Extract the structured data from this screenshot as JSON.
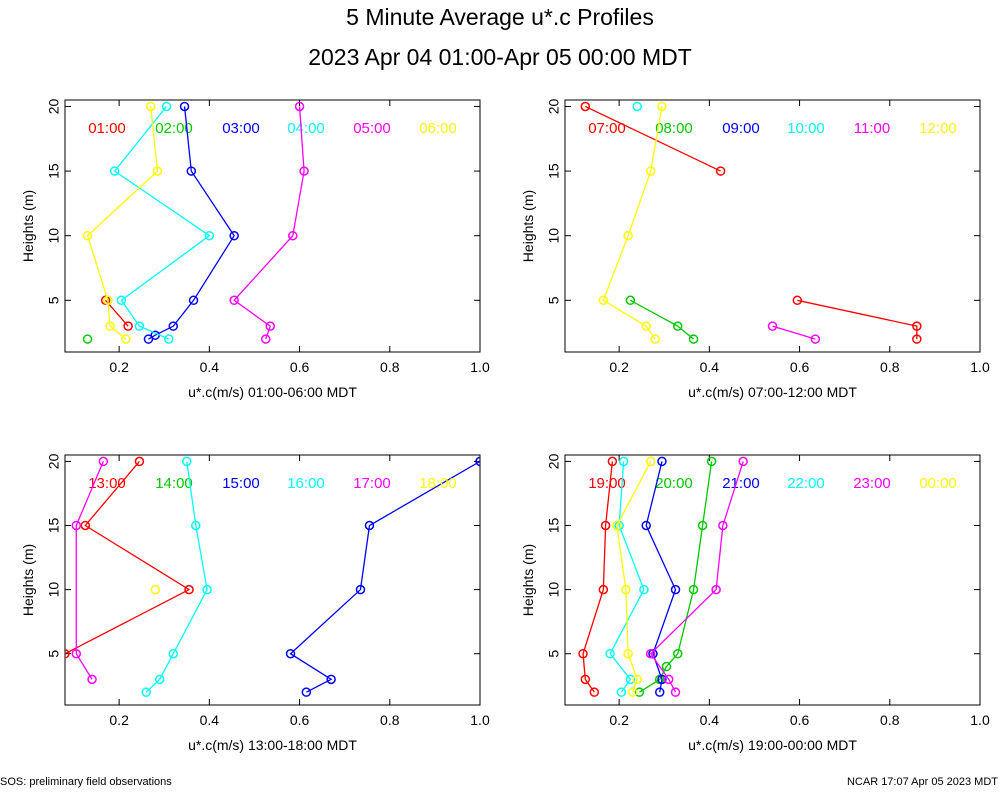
{
  "title": "5 Minute Average u*.c Profiles",
  "subtitle": "2023 Apr 04 01:00-Apr 05 00:00 MDT",
  "footer_left": "SOS: preliminary field observations",
  "footer_right": "NCAR 17:07 Apr 05 2023 MDT",
  "colors": [
    "#ff0000",
    "#00c800",
    "#0000ff",
    "#00ffff",
    "#ff00ff",
    "#ffff00"
  ],
  "chart_data": [
    {
      "type": "line",
      "xlabel": "u*.c(m/s) 01:00-06:00 MDT",
      "ylabel": "Heights (m)",
      "xlim": [
        0.08,
        1.0
      ],
      "ylim": [
        1.0,
        20.5
      ],
      "xticks": [
        0.2,
        0.4,
        0.6,
        0.8,
        1.0
      ],
      "xtick_labels": [
        "0.2",
        "0.4",
        "0.6",
        "0.8",
        "1.0"
      ],
      "yticks": [
        5,
        10,
        15,
        20
      ],
      "ytick_labels": [
        "5",
        "10",
        "15",
        "20"
      ],
      "series": [
        {
          "name": "01:00",
          "points": [
            [
              0.17,
              5
            ],
            [
              0.22,
              3
            ]
          ]
        },
        {
          "name": "02:00",
          "points": [
            [
              0.13,
              2
            ]
          ]
        },
        {
          "name": "03:00",
          "points": [
            [
              0.345,
              20
            ],
            [
              0.36,
              15
            ],
            [
              0.455,
              10
            ],
            [
              0.365,
              5
            ],
            [
              0.32,
              3
            ],
            [
              0.28,
              2.3
            ],
            [
              0.265,
              2
            ]
          ]
        },
        {
          "name": "04:00",
          "points": [
            [
              0.305,
              20
            ],
            [
              0.19,
              15
            ],
            [
              0.4,
              10
            ],
            [
              0.205,
              5
            ],
            [
              0.245,
              3
            ],
            [
              0.31,
              2
            ]
          ]
        },
        {
          "name": "05:00",
          "points": [
            [
              0.6,
              20
            ],
            [
              0.61,
              15
            ],
            [
              0.585,
              10
            ],
            [
              0.455,
              5
            ],
            [
              0.535,
              3
            ],
            [
              0.525,
              2
            ]
          ]
        },
        {
          "name": "06:00",
          "points": [
            [
              0.27,
              20
            ],
            [
              0.285,
              15
            ],
            [
              0.13,
              10
            ],
            [
              0.175,
              5
            ],
            [
              0.18,
              3
            ],
            [
              0.215,
              2
            ]
          ]
        }
      ]
    },
    {
      "type": "line",
      "xlabel": "u*.c(m/s) 07:00-12:00 MDT",
      "ylabel": "Heights (m)",
      "xlim": [
        0.08,
        1.0
      ],
      "ylim": [
        1.0,
        20.5
      ],
      "xticks": [
        0.2,
        0.4,
        0.6,
        0.8,
        1.0
      ],
      "xtick_labels": [
        "0.2",
        "0.4",
        "0.6",
        "0.8",
        "1.0"
      ],
      "yticks": [
        5,
        10,
        15,
        20
      ],
      "ytick_labels": [
        "5",
        "10",
        "15",
        "20"
      ],
      "series": [
        {
          "name": "07:00",
          "points": [
            [
              0.125,
              20
            ],
            [
              0.425,
              15
            ]
          ],
          "extra": [
            [
              0.595,
              5
            ],
            [
              0.86,
              3
            ],
            [
              0.86,
              2
            ]
          ],
          "extra_points": [
            [
              0.595,
              5
            ],
            [
              0.86,
              3
            ],
            [
              0.86,
              2
            ]
          ]
        },
        {
          "name": "08:00",
          "points": [
            [
              0.225,
              5
            ],
            [
              0.33,
              3
            ],
            [
              0.365,
              2
            ]
          ]
        },
        {
          "name": "09:00",
          "points": []
        },
        {
          "name": "10:00",
          "points": [
            [
              0.24,
              20
            ]
          ]
        },
        {
          "name": "11:00",
          "points": [
            [
              0.54,
              3
            ],
            [
              0.635,
              2
            ]
          ]
        },
        {
          "name": "12:00",
          "points": [
            [
              0.295,
              20
            ],
            [
              0.27,
              15
            ],
            [
              0.22,
              10
            ],
            [
              0.165,
              5
            ],
            [
              0.26,
              3
            ],
            [
              0.28,
              2
            ]
          ]
        }
      ]
    },
    {
      "type": "line",
      "xlabel": "u*.c(m/s) 13:00-18:00 MDT",
      "ylabel": "Heights (m)",
      "xlim": [
        0.08,
        1.0
      ],
      "ylim": [
        1.0,
        20.5
      ],
      "xticks": [
        0.2,
        0.4,
        0.6,
        0.8,
        1.0
      ],
      "xtick_labels": [
        "0.2",
        "0.4",
        "0.6",
        "0.8",
        "1.0"
      ],
      "yticks": [
        5,
        10,
        15,
        20
      ],
      "ytick_labels": [
        "5",
        "10",
        "15",
        "20"
      ],
      "series": [
        {
          "name": "13:00",
          "points": [
            [
              0.245,
              20
            ],
            [
              0.125,
              15
            ],
            [
              0.355,
              10
            ],
            [
              0.08,
              5
            ]
          ]
        },
        {
          "name": "14:00",
          "points": []
        },
        {
          "name": "15:00",
          "points": [
            [
              1.0,
              20
            ],
            [
              0.755,
              15
            ],
            [
              0.735,
              10
            ],
            [
              0.58,
              5
            ],
            [
              0.67,
              3
            ],
            [
              0.615,
              2
            ]
          ]
        },
        {
          "name": "16:00",
          "points": [
            [
              0.35,
              20
            ],
            [
              0.37,
              15
            ],
            [
              0.395,
              10
            ],
            [
              0.32,
              5
            ],
            [
              0.29,
              3
            ],
            [
              0.26,
              2
            ]
          ]
        },
        {
          "name": "17:00",
          "points": [
            [
              0.165,
              20
            ],
            [
              0.105,
              15
            ],
            [
              0.105,
              5
            ],
            [
              0.14,
              3
            ]
          ]
        },
        {
          "name": "18:00",
          "points": [
            [
              0.28,
              10
            ]
          ]
        }
      ]
    },
    {
      "type": "line",
      "xlabel": "u*.c(m/s) 19:00-00:00 MDT",
      "ylabel": "Heights (m)",
      "xlim": [
        0.08,
        1.0
      ],
      "ylim": [
        1.0,
        20.5
      ],
      "xticks": [
        0.2,
        0.4,
        0.6,
        0.8,
        1.0
      ],
      "xtick_labels": [
        "0.2",
        "0.4",
        "0.6",
        "0.8",
        "1.0"
      ],
      "yticks": [
        5,
        10,
        15,
        20
      ],
      "ytick_labels": [
        "5",
        "10",
        "15",
        "20"
      ],
      "series": [
        {
          "name": "19:00",
          "points": [
            [
              0.185,
              20
            ],
            [
              0.17,
              15
            ],
            [
              0.165,
              10
            ],
            [
              0.12,
              5
            ],
            [
              0.125,
              3
            ],
            [
              0.145,
              2
            ]
          ]
        },
        {
          "name": "20:00",
          "points": [
            [
              0.405,
              20
            ],
            [
              0.385,
              15
            ],
            [
              0.365,
              10
            ],
            [
              0.33,
              5
            ],
            [
              0.305,
              4
            ],
            [
              0.29,
              3
            ],
            [
              0.245,
              2
            ]
          ]
        },
        {
          "name": "21:00",
          "points": [
            [
              0.295,
              20
            ],
            [
              0.26,
              15
            ],
            [
              0.325,
              10
            ],
            [
              0.275,
              5
            ],
            [
              0.295,
              3
            ],
            [
              0.29,
              2
            ]
          ]
        },
        {
          "name": "22:00",
          "points": [
            [
              0.21,
              20
            ],
            [
              0.2,
              15
            ],
            [
              0.255,
              10
            ],
            [
              0.18,
              5
            ],
            [
              0.225,
              3
            ],
            [
              0.205,
              2
            ]
          ]
        },
        {
          "name": "23:00",
          "points": [
            [
              0.475,
              20
            ],
            [
              0.43,
              15
            ],
            [
              0.415,
              10
            ],
            [
              0.27,
              5
            ],
            [
              0.31,
              3
            ],
            [
              0.325,
              2
            ]
          ]
        },
        {
          "name": "00:00",
          "points": [
            [
              0.27,
              20
            ],
            [
              0.195,
              15
            ],
            [
              0.215,
              10
            ],
            [
              0.22,
              5
            ],
            [
              0.24,
              3
            ],
            [
              0.23,
              2
            ]
          ]
        }
      ]
    }
  ]
}
